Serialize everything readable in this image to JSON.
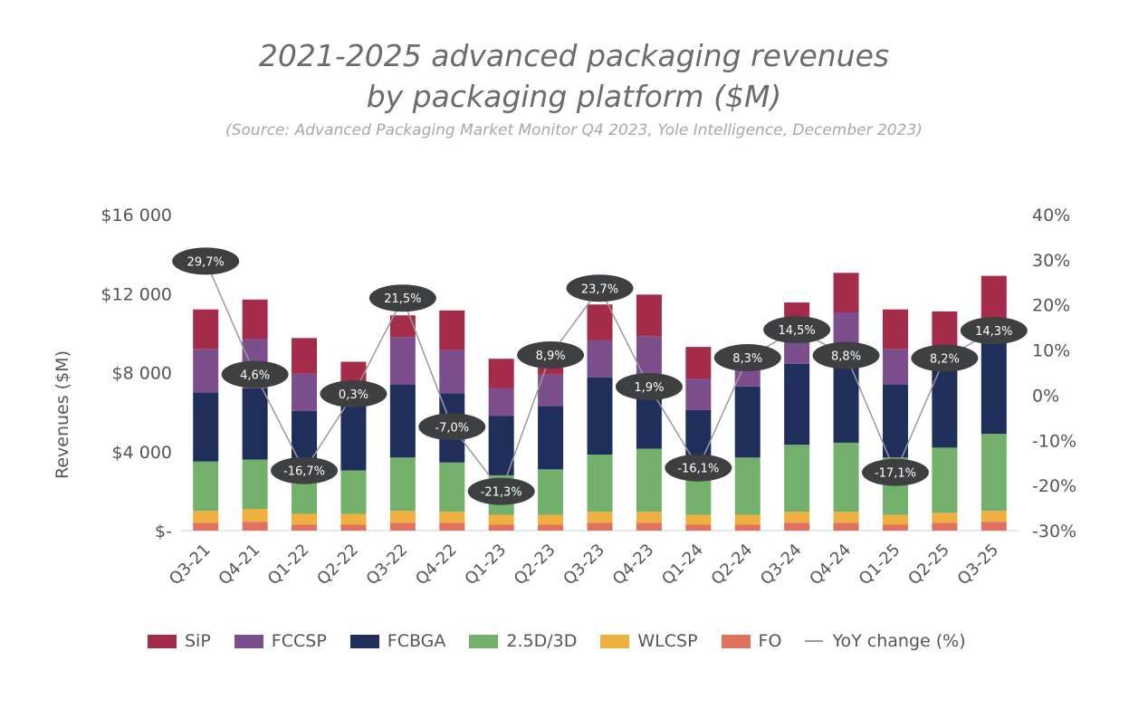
{
  "chart_data": {
    "type": "bar",
    "title": "2021-2025 advanced packaging revenues",
    "title_line2": "by packaging platform ($M)",
    "subtitle": "(Source:  Advanced Packaging Market Monitor Q4 2023, Yole Intelligence, December 2023)",
    "ylabel": "Revenues ($M)",
    "ylim": [
      0,
      16000
    ],
    "y2lim": [
      -30,
      40
    ],
    "y_ticks": [
      "$-",
      "$4 000",
      "$8 000",
      "$12 000",
      "$16 000"
    ],
    "y2_ticks": [
      "-30%",
      "-20%",
      "-10%",
      "0%",
      "10%",
      "20%",
      "30%",
      "40%"
    ],
    "categories": [
      "Q3-21",
      "Q4-21",
      "Q1-22",
      "Q2-22",
      "Q3-22",
      "Q4-22",
      "Q1-23",
      "Q2-23",
      "Q3-23",
      "Q4-23",
      "Q1-24",
      "Q2-24",
      "Q3-24",
      "Q4-24",
      "Q1-25",
      "Q2-25",
      "Q3-25"
    ],
    "series": [
      {
        "name": "FO",
        "color": "#e07060",
        "values": [
          400,
          450,
          300,
          300,
          400,
          400,
          300,
          300,
          400,
          400,
          300,
          300,
          400,
          400,
          300,
          400,
          450
        ]
      },
      {
        "name": "WLCSP",
        "color": "#f0b040",
        "values": [
          600,
          650,
          550,
          550,
          600,
          550,
          500,
          500,
          550,
          550,
          500,
          500,
          550,
          550,
          500,
          500,
          550
        ]
      },
      {
        "name": "2.5D/3D",
        "color": "#72b06c",
        "values": [
          2500,
          2500,
          2000,
          2200,
          2700,
          2500,
          2000,
          2300,
          2900,
          3200,
          2000,
          2900,
          3400,
          3500,
          2900,
          3300,
          3900
        ]
      },
      {
        "name": "FCBGA",
        "color": "#202e5c",
        "values": [
          3500,
          3600,
          3200,
          3400,
          3700,
          3500,
          3000,
          3200,
          3900,
          3700,
          3300,
          3600,
          4100,
          4000,
          3700,
          4000,
          4800
        ]
      },
      {
        "name": "FCCSP",
        "color": "#7c4e8c",
        "values": [
          2200,
          2500,
          1900,
          400,
          2400,
          2200,
          1400,
          1600,
          1900,
          2000,
          1600,
          900,
          1500,
          2600,
          1800,
          900,
          1000
        ]
      },
      {
        "name": "SiP",
        "color": "#a52b4a",
        "values": [
          2000,
          2000,
          1800,
          1700,
          1100,
          2000,
          1500,
          400,
          1800,
          2100,
          1600,
          1200,
          1600,
          2000,
          2000,
          2000,
          2200
        ]
      }
    ],
    "line": {
      "name": "YoY change (%)",
      "color": "#9a9a9a",
      "values": [
        29.7,
        4.6,
        -16.7,
        0.3,
        21.5,
        -7.0,
        -21.3,
        8.9,
        23.7,
        1.9,
        -16.1,
        8.3,
        14.5,
        8.8,
        -17.1,
        8.2,
        14.3
      ],
      "labels": [
        "29,7%",
        "4,6%",
        "-16,7%",
        "0,3%",
        "21,5%",
        "-7,0%",
        "-21,3%",
        "8,9%",
        "23,7%",
        "1,9%",
        "-16,1%",
        "8,3%",
        "14,5%",
        "8,8%",
        "-17,1%",
        "8,2%",
        "14,3%"
      ]
    },
    "legend_position": "bottom",
    "grid": false
  }
}
